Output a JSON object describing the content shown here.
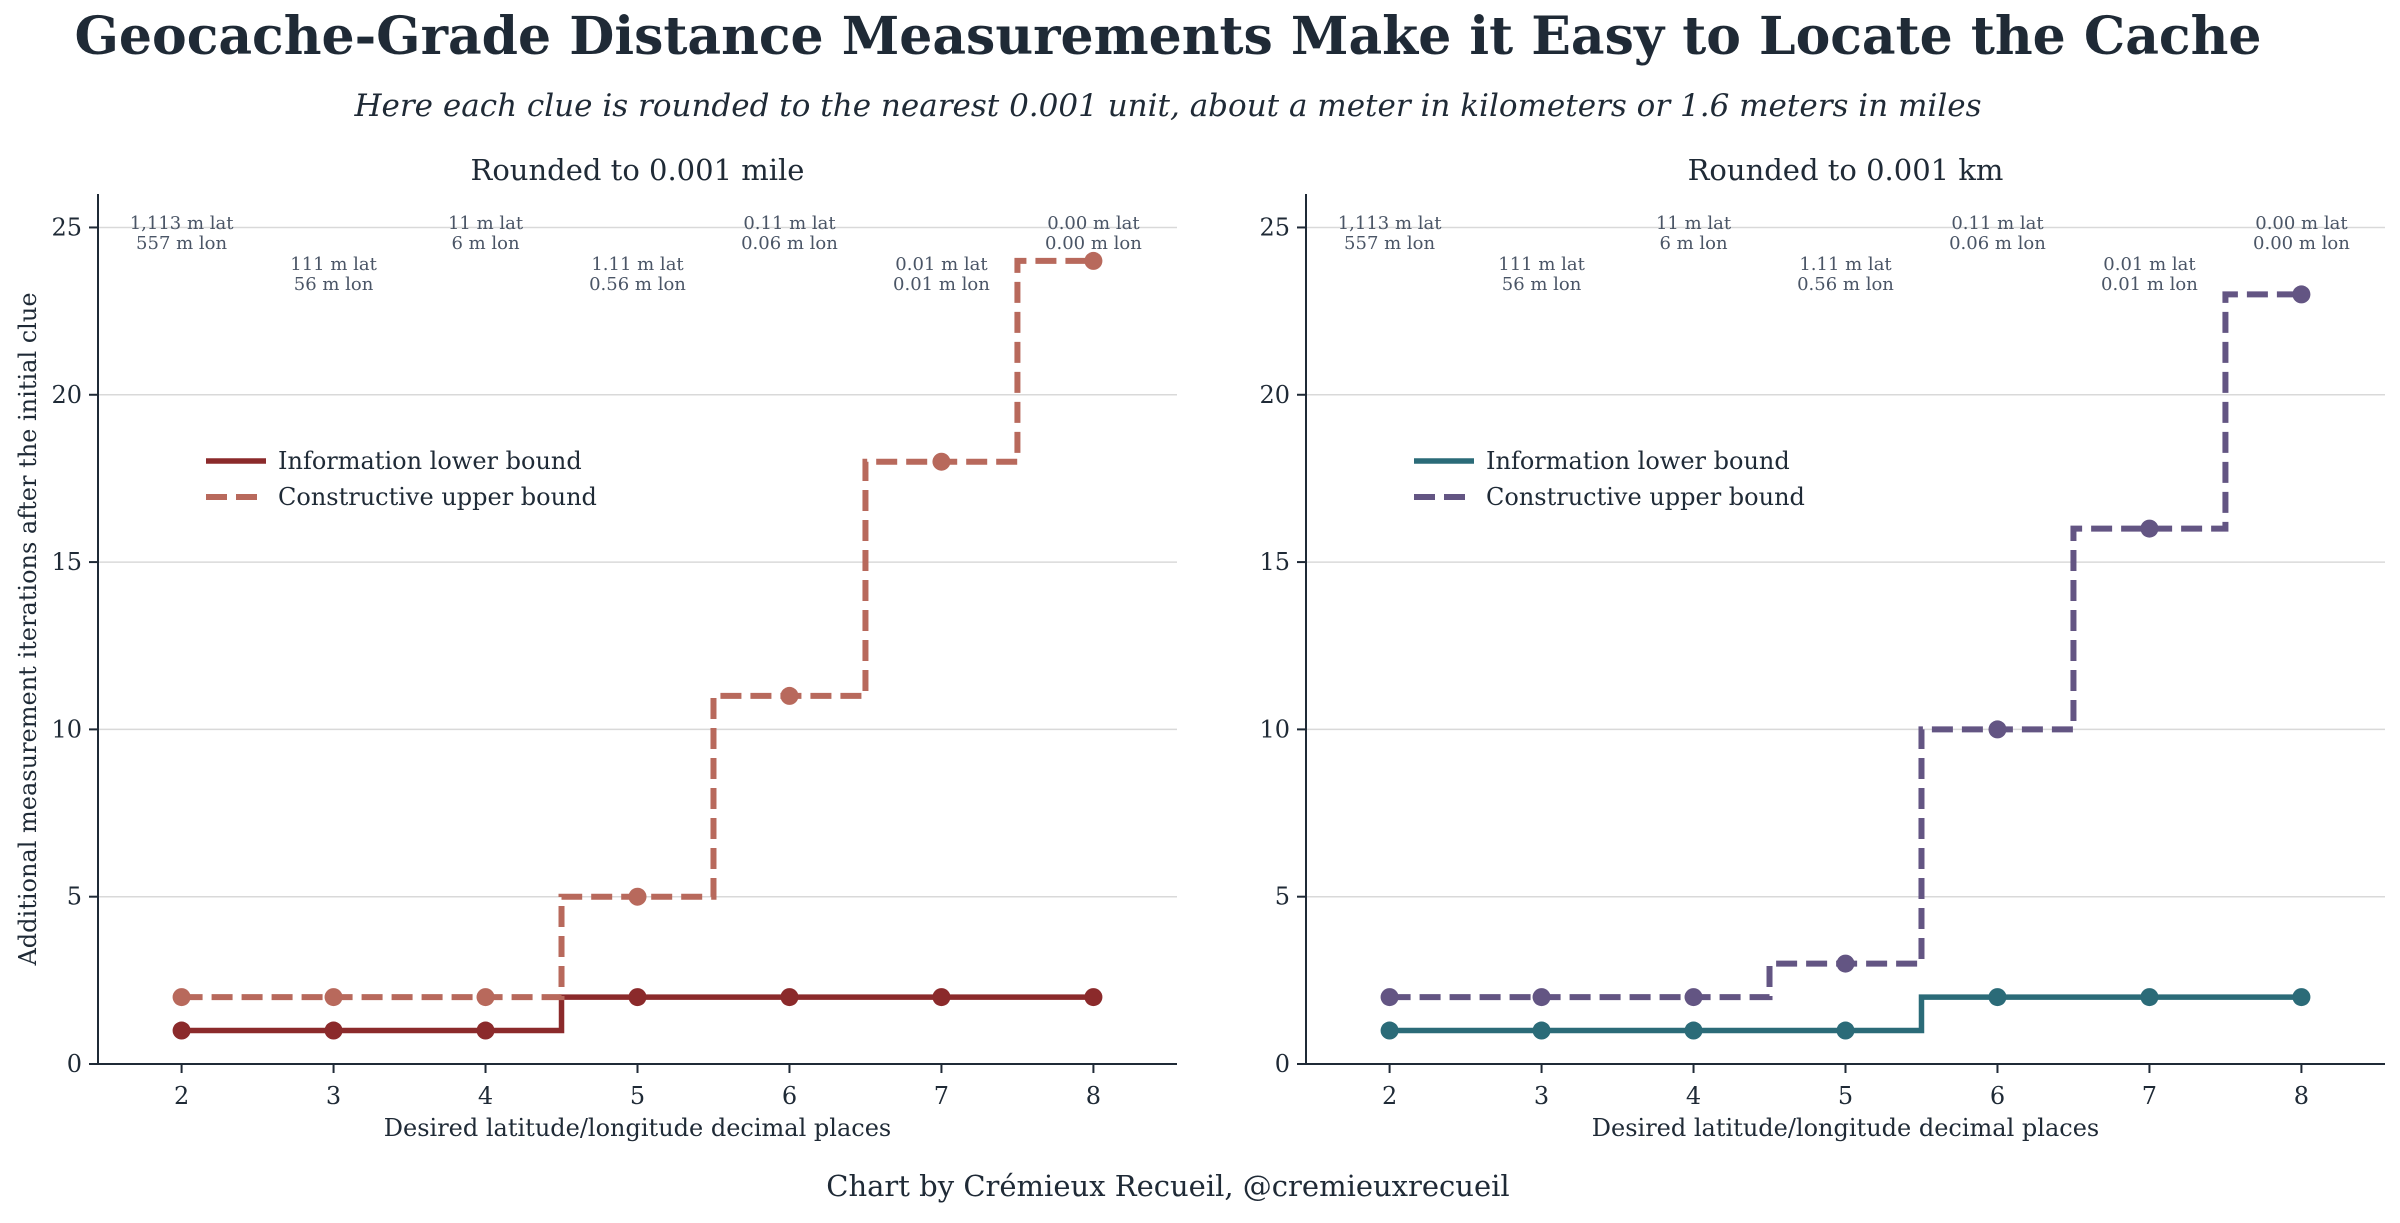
{
  "title": "Geocache-Grade Distance Measurements Make it Easy to Locate the Cache",
  "subtitle": "Here each clue is rounded to the nearest 0.001 unit, about a meter in kilometers or 1.6 meters in miles",
  "credit": "Chart by Crémieux Recueil, @cremieuxrecueil",
  "colors": {
    "mile_lower": "#8b2a2b",
    "mile_upper": "#b8695c",
    "km_lower": "#2b6b78",
    "km_upper": "#635583",
    "grid": "#d9d9d9",
    "text": "#1f2a36",
    "annotation": "#4a5566"
  },
  "chart_data": [
    {
      "type": "line",
      "step": "mid",
      "title": "Rounded to 0.001 mile",
      "xlabel": "Desired latitude/longitude decimal places",
      "ylabel": "Additional measurement iterations after the initial clue",
      "x": [
        2,
        3,
        4,
        5,
        6,
        7,
        8
      ],
      "xlim": [
        1.45,
        8.55
      ],
      "ylim": [
        0,
        26
      ],
      "yticks": [
        0,
        5,
        10,
        15,
        20,
        25
      ],
      "grid": "horizontal",
      "legend": "upper-left",
      "series": [
        {
          "name": "Information lower bound",
          "style": "solid",
          "color_key": "mile_lower",
          "values": [
            1,
            1,
            1,
            2,
            2,
            2,
            2
          ]
        },
        {
          "name": "Constructive upper bound",
          "style": "dashed",
          "color_key": "mile_upper",
          "values": [
            2,
            2,
            2,
            5,
            11,
            18,
            24
          ]
        }
      ],
      "annotations": [
        {
          "x": 2,
          "lat": "1,113 m lat",
          "lon": "557 m lon"
        },
        {
          "x": 3,
          "lat": "111 m lat",
          "lon": "56 m lon"
        },
        {
          "x": 4,
          "lat": "11 m lat",
          "lon": "6 m lon"
        },
        {
          "x": 5,
          "lat": "1.11 m lat",
          "lon": "0.56 m lon"
        },
        {
          "x": 6,
          "lat": "0.11 m lat",
          "lon": "0.06 m lon"
        },
        {
          "x": 7,
          "lat": "0.01 m lat",
          "lon": "0.01 m lon"
        },
        {
          "x": 8,
          "lat": "0.00 m lat",
          "lon": "0.00 m lon"
        }
      ]
    },
    {
      "type": "line",
      "step": "mid",
      "title": "Rounded to 0.001 km",
      "xlabel": "Desired latitude/longitude decimal places",
      "ylabel": "",
      "x": [
        2,
        3,
        4,
        5,
        6,
        7,
        8
      ],
      "xlim": [
        1.45,
        8.55
      ],
      "ylim": [
        0,
        26
      ],
      "yticks": [
        0,
        5,
        10,
        15,
        20,
        25
      ],
      "grid": "horizontal",
      "legend": "upper-left",
      "series": [
        {
          "name": "Information lower bound",
          "style": "solid",
          "color_key": "km_lower",
          "values": [
            1,
            1,
            1,
            1,
            2,
            2,
            2
          ]
        },
        {
          "name": "Constructive upper bound",
          "style": "dashed",
          "color_key": "km_upper",
          "values": [
            2,
            2,
            2,
            3,
            10,
            16,
            23
          ]
        }
      ],
      "annotations": [
        {
          "x": 2,
          "lat": "1,113 m lat",
          "lon": "557 m lon"
        },
        {
          "x": 3,
          "lat": "111 m lat",
          "lon": "56 m lon"
        },
        {
          "x": 4,
          "lat": "11 m lat",
          "lon": "6 m lon"
        },
        {
          "x": 5,
          "lat": "1.11 m lat",
          "lon": "0.56 m lon"
        },
        {
          "x": 6,
          "lat": "0.11 m lat",
          "lon": "0.06 m lon"
        },
        {
          "x": 7,
          "lat": "0.01 m lat",
          "lon": "0.01 m lon"
        },
        {
          "x": 8,
          "lat": "0.00 m lat",
          "lon": "0.00 m lon"
        }
      ]
    }
  ]
}
